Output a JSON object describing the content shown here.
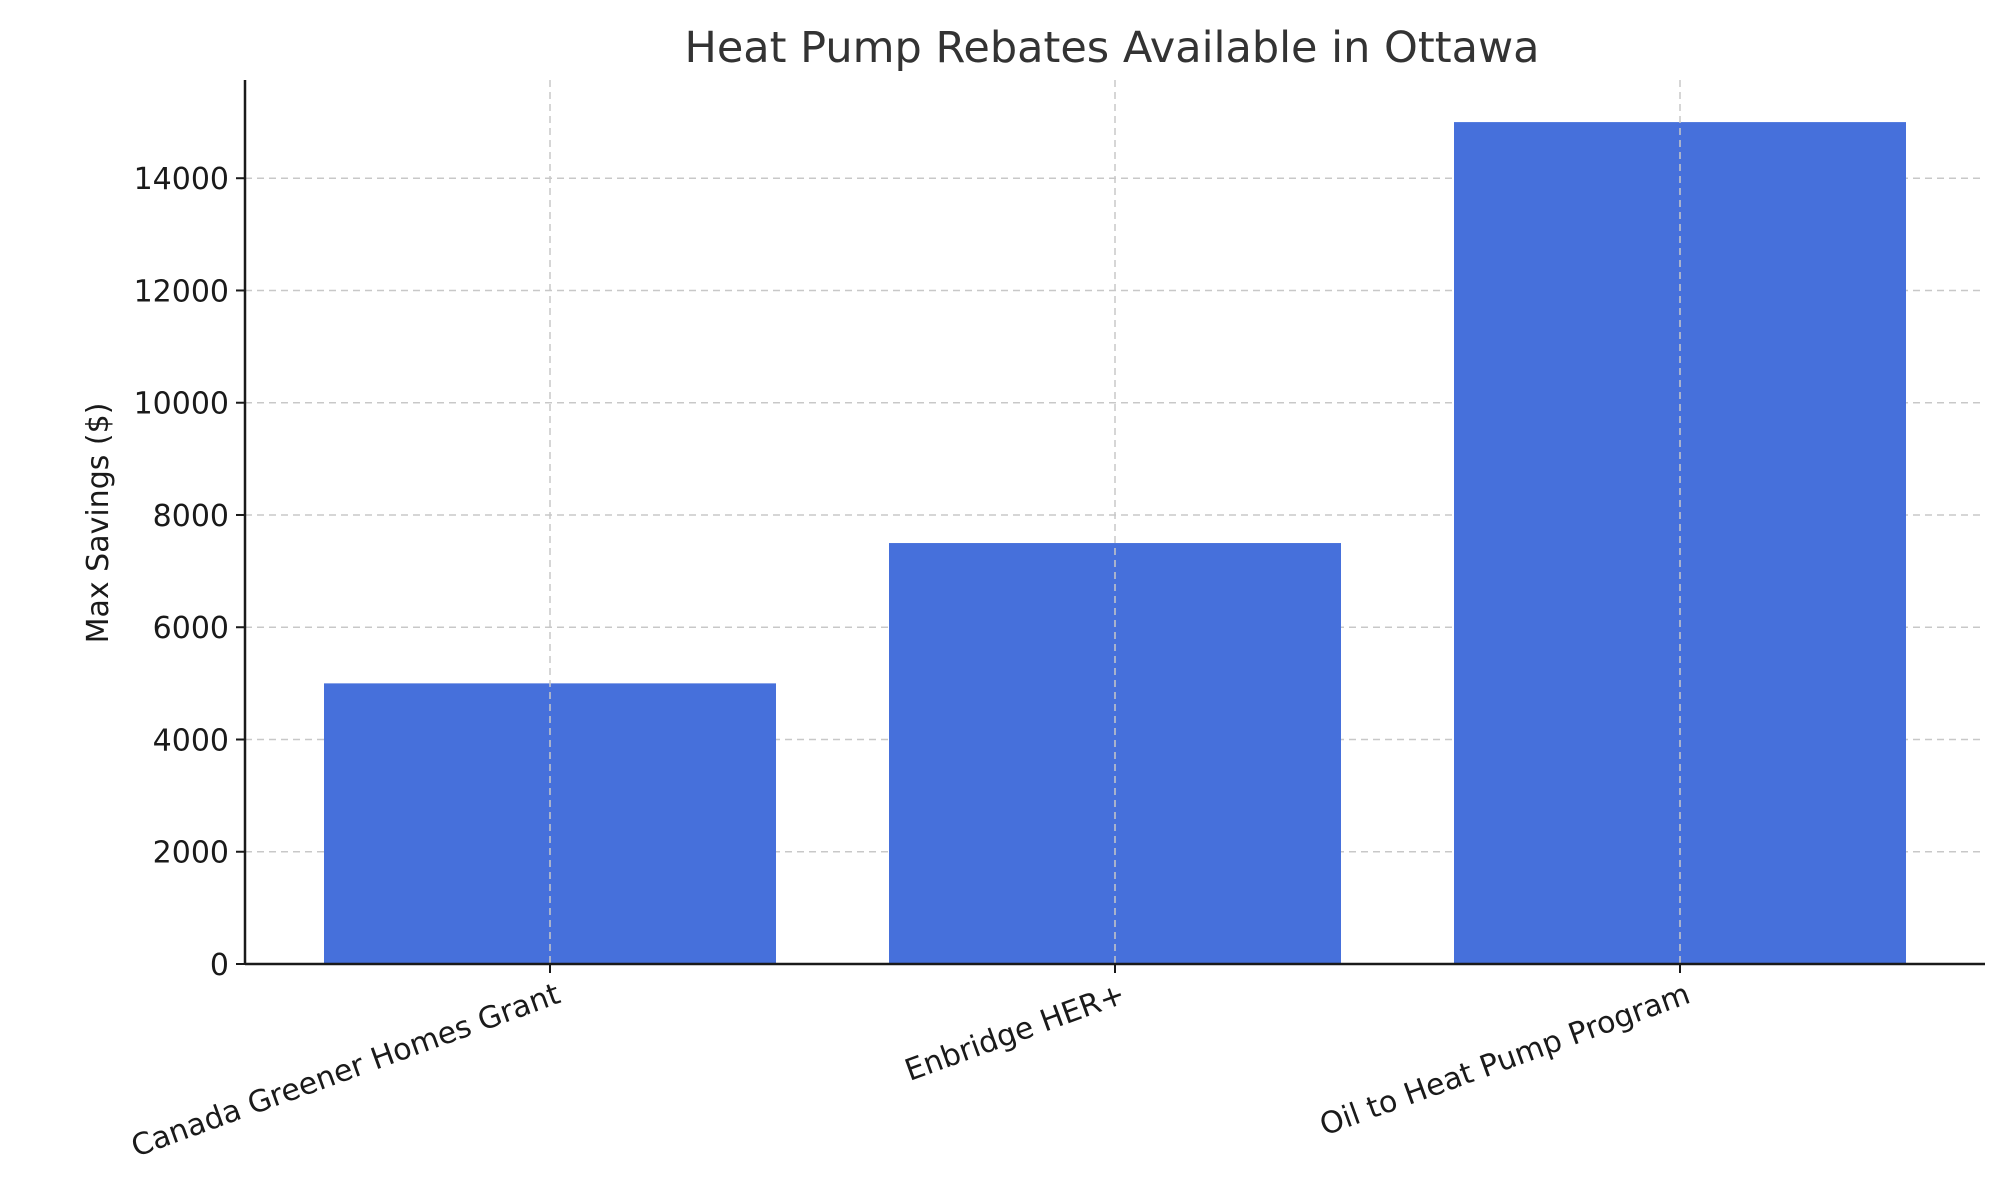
{
  "chart_data": {
    "type": "bar",
    "title": "Heat Pump Rebates Available in Ottawa",
    "xlabel": "",
    "ylabel": "Max Savings ($)",
    "categories": [
      "Canada Greener Homes Grant",
      "Enbridge HER+",
      "Oil to Heat Pump Program"
    ],
    "values": [
      5000,
      7500,
      15000
    ],
    "yticks": [
      0,
      2000,
      4000,
      6000,
      8000,
      10000,
      12000,
      14000
    ],
    "ylim": [
      0,
      15750
    ],
    "grid": true,
    "bar_color": "#4670db"
  }
}
